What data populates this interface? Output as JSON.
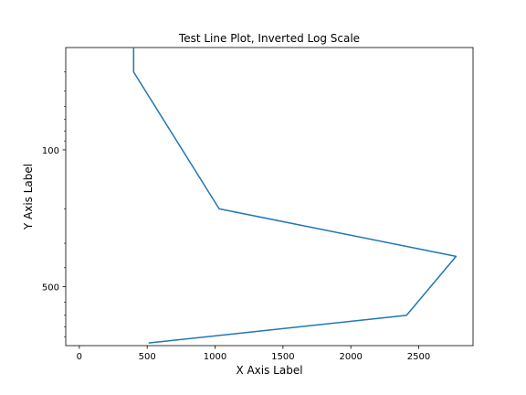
{
  "chart_data": {
    "type": "line",
    "title": "Test Line Plot, Inverted Log Scale",
    "xlabel": "X Axis Label",
    "ylabel": "Y Axis Label",
    "xlim": [
      -100,
      2900
    ],
    "ylim": [
      1000,
      30
    ],
    "yscale": "log",
    "y_inverted": true,
    "grid": false,
    "x_ticks": [
      {
        "value": 0,
        "label": "0"
      },
      {
        "value": 500,
        "label": "500"
      },
      {
        "value": 1000,
        "label": "1000"
      },
      {
        "value": 1500,
        "label": "1500"
      },
      {
        "value": 2000,
        "label": "2000"
      },
      {
        "value": 2500,
        "label": "2500"
      }
    ],
    "y_major_ticks": [
      {
        "value": 100,
        "label": "100"
      },
      {
        "value": 500,
        "label": "500"
      }
    ],
    "y_minor_ticks": [
      40,
      50,
      60,
      70,
      80,
      90,
      200,
      300,
      400,
      600,
      700,
      800,
      900
    ],
    "series": [
      {
        "color": "#1f77b4",
        "x": [
          400,
          400,
          1030,
          2775,
          2410,
          510
        ],
        "y": [
          30,
          40,
          200,
          350,
          700,
          970
        ]
      }
    ]
  }
}
